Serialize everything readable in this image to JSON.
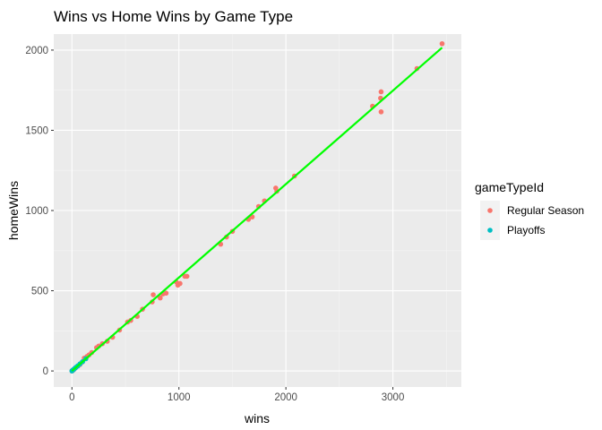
{
  "chart_data": {
    "type": "scatter",
    "title": "Wins vs Home Wins by Game Type",
    "xlabel": "wins",
    "ylabel": "homeWins",
    "xlim": [
      -170,
      3640
    ],
    "ylim": [
      -100,
      2100
    ],
    "x_ticks": [
      0,
      1000,
      2000,
      3000
    ],
    "y_ticks": [
      0,
      500,
      1000,
      1500,
      2000
    ],
    "grid": true,
    "legend": {
      "title": "gameTypeId",
      "position": "right",
      "entries": [
        {
          "label": "Regular Season",
          "color": "#f8766d"
        },
        {
          "label": "Playoffs",
          "color": "#00bfc4"
        }
      ]
    },
    "series": [
      {
        "name": "Regular Season",
        "color": "#f8766d",
        "points": [
          [
            3460,
            2040
          ],
          [
            3225,
            1885
          ],
          [
            2890,
            1740
          ],
          [
            2885,
            1700
          ],
          [
            2890,
            1615
          ],
          [
            2810,
            1650
          ],
          [
            2080,
            1215
          ],
          [
            1905,
            1140
          ],
          [
            1915,
            1120
          ],
          [
            1800,
            1060
          ],
          [
            1745,
            1025
          ],
          [
            1685,
            960
          ],
          [
            1650,
            945
          ],
          [
            1500,
            870
          ],
          [
            1445,
            835
          ],
          [
            1390,
            790
          ],
          [
            1075,
            590
          ],
          [
            1055,
            590
          ],
          [
            1010,
            545
          ],
          [
            975,
            555
          ],
          [
            990,
            535
          ],
          [
            880,
            485
          ],
          [
            850,
            480
          ],
          [
            825,
            455
          ],
          [
            760,
            475
          ],
          [
            750,
            430
          ],
          [
            660,
            385
          ],
          [
            610,
            340
          ],
          [
            550,
            315
          ],
          [
            520,
            305
          ],
          [
            445,
            255
          ],
          [
            380,
            210
          ],
          [
            330,
            185
          ],
          [
            285,
            170
          ],
          [
            250,
            155
          ],
          [
            230,
            145
          ],
          [
            185,
            115
          ],
          [
            160,
            100
          ],
          [
            140,
            90
          ],
          [
            115,
            80
          ],
          [
            95,
            55
          ],
          [
            75,
            40
          ],
          [
            55,
            30
          ],
          [
            35,
            20
          ],
          [
            20,
            10
          ],
          [
            10,
            5
          ],
          [
            5,
            2
          ],
          [
            0,
            0
          ]
        ]
      },
      {
        "name": "Playoffs",
        "color": "#00bfc4",
        "points": [
          [
            0,
            0
          ],
          [
            5,
            3
          ],
          [
            10,
            6
          ],
          [
            15,
            9
          ],
          [
            20,
            12
          ],
          [
            30,
            18
          ],
          [
            40,
            24
          ],
          [
            55,
            32
          ],
          [
            75,
            44
          ],
          [
            100,
            58
          ],
          [
            130,
            76
          ]
        ]
      }
    ],
    "trend_line": {
      "color": "#00ff00",
      "points": [
        [
          0,
          0
        ],
        [
          3460,
          2015
        ]
      ]
    }
  }
}
